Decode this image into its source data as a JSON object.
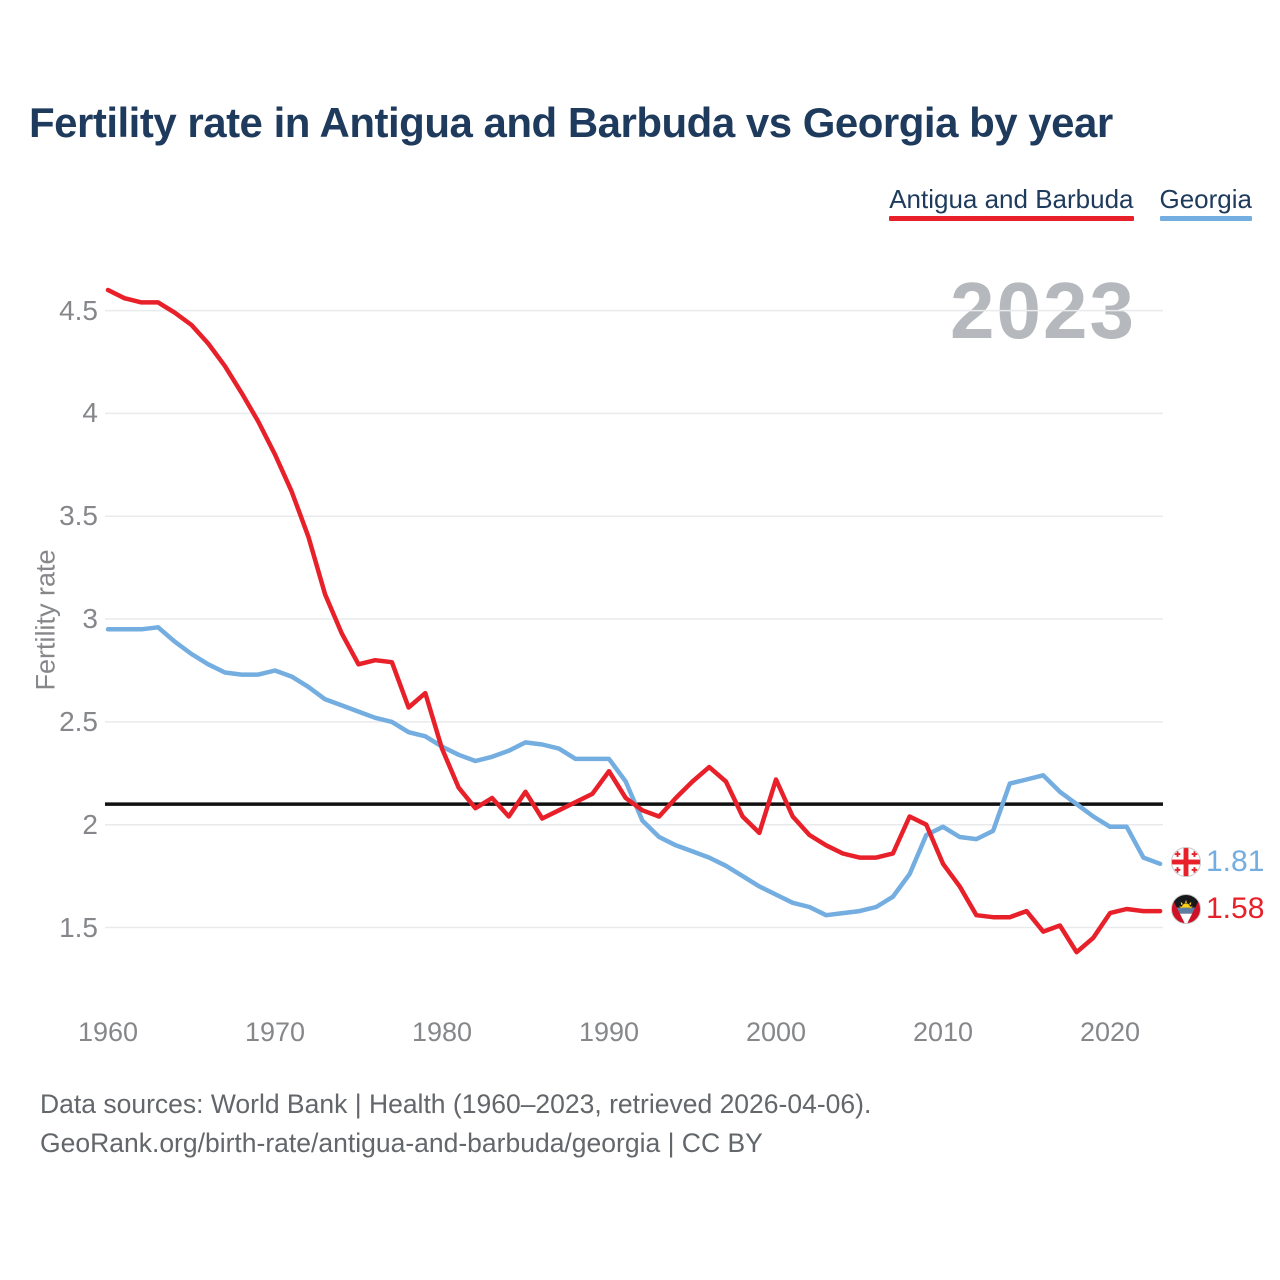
{
  "title": "Fertility rate in Antigua and Barbuda vs Georgia by year",
  "watermark_year": "2023",
  "legend": {
    "antigua_label": "Antigua and Barbuda",
    "georgia_label": "Georgia"
  },
  "end_labels": {
    "georgia_value": "1.81",
    "antigua_value": "1.58"
  },
  "footer": {
    "line1": "Data sources: World Bank | Health (1960–2023, retrieved 2026-04-06).",
    "line2": "GeoRank.org/birth-rate/antigua-and-barbuda/georgia | CC BY"
  },
  "colors": {
    "antigua_red": "#e8202a",
    "georgia_blue": "#74ade0",
    "title_navy": "#1e3a5c",
    "tick_gray": "#85878a",
    "grid_gray": "#e9eaec",
    "reference_black": "#111111",
    "watermark_gray": "#b5b8bc",
    "antigua_flag_red": "#ce1126",
    "antigua_flag_blue": "#5b7fa4",
    "antigua_flag_sun": "#fcd116"
  },
  "chart_data": {
    "type": "line",
    "title": "Fertility rate in Antigua and Barbuda vs Georgia by year",
    "xlabel": "",
    "ylabel": "Fertility rate",
    "x_ticks": [
      "1960",
      "1970",
      "1980",
      "1990",
      "2000",
      "2010",
      "2020"
    ],
    "y_ticks": [
      "4.5",
      "4",
      "3.5",
      "3",
      "2.5",
      "2",
      "1.5"
    ],
    "ylim": [
      1.25,
      4.7
    ],
    "xlim": [
      1960,
      2023
    ],
    "grid": true,
    "legend_position": "top-right",
    "reference_line": 2.1,
    "x": [
      1960,
      1961,
      1962,
      1963,
      1964,
      1965,
      1966,
      1967,
      1968,
      1969,
      1970,
      1971,
      1972,
      1973,
      1974,
      1975,
      1976,
      1977,
      1978,
      1979,
      1980,
      1981,
      1982,
      1983,
      1984,
      1985,
      1986,
      1987,
      1988,
      1989,
      1990,
      1991,
      1992,
      1993,
      1994,
      1995,
      1996,
      1997,
      1998,
      1999,
      2000,
      2001,
      2002,
      2003,
      2004,
      2005,
      2006,
      2007,
      2008,
      2009,
      2010,
      2011,
      2012,
      2013,
      2014,
      2015,
      2016,
      2017,
      2018,
      2019,
      2020,
      2021,
      2022,
      2023
    ],
    "series": [
      {
        "name": "Antigua and Barbuda",
        "color": "#e8202a",
        "final_value": 1.58,
        "values": [
          4.6,
          4.56,
          4.54,
          4.54,
          4.49,
          4.43,
          4.34,
          4.23,
          4.1,
          3.96,
          3.8,
          3.62,
          3.4,
          3.12,
          2.93,
          2.78,
          2.8,
          2.79,
          2.57,
          2.64,
          2.37,
          2.18,
          2.08,
          2.13,
          2.04,
          2.16,
          2.03,
          2.07,
          2.11,
          2.15,
          2.26,
          2.13,
          2.07,
          2.04,
          2.13,
          2.21,
          2.28,
          2.21,
          2.04,
          1.96,
          2.22,
          2.04,
          1.95,
          1.9,
          1.86,
          1.84,
          1.84,
          1.86,
          2.04,
          2.0,
          1.81,
          1.7,
          1.56,
          1.55,
          1.55,
          1.58,
          1.48,
          1.51,
          1.38,
          1.45,
          1.57,
          1.59,
          1.58,
          1.58
        ]
      },
      {
        "name": "Georgia",
        "color": "#74ade0",
        "final_value": 1.81,
        "values": [
          2.95,
          2.95,
          2.95,
          2.96,
          2.89,
          2.83,
          2.78,
          2.74,
          2.73,
          2.73,
          2.75,
          2.72,
          2.67,
          2.61,
          2.58,
          2.55,
          2.52,
          2.5,
          2.45,
          2.43,
          2.38,
          2.34,
          2.31,
          2.33,
          2.36,
          2.4,
          2.39,
          2.37,
          2.32,
          2.32,
          2.32,
          2.21,
          2.02,
          1.94,
          1.9,
          1.87,
          1.84,
          1.8,
          1.75,
          1.7,
          1.66,
          1.62,
          1.6,
          1.56,
          1.57,
          1.58,
          1.6,
          1.65,
          1.76,
          1.95,
          1.99,
          1.94,
          1.93,
          1.97,
          2.2,
          2.22,
          2.24,
          2.16,
          2.1,
          2.04,
          1.99,
          1.99,
          1.84,
          1.81
        ]
      }
    ]
  }
}
